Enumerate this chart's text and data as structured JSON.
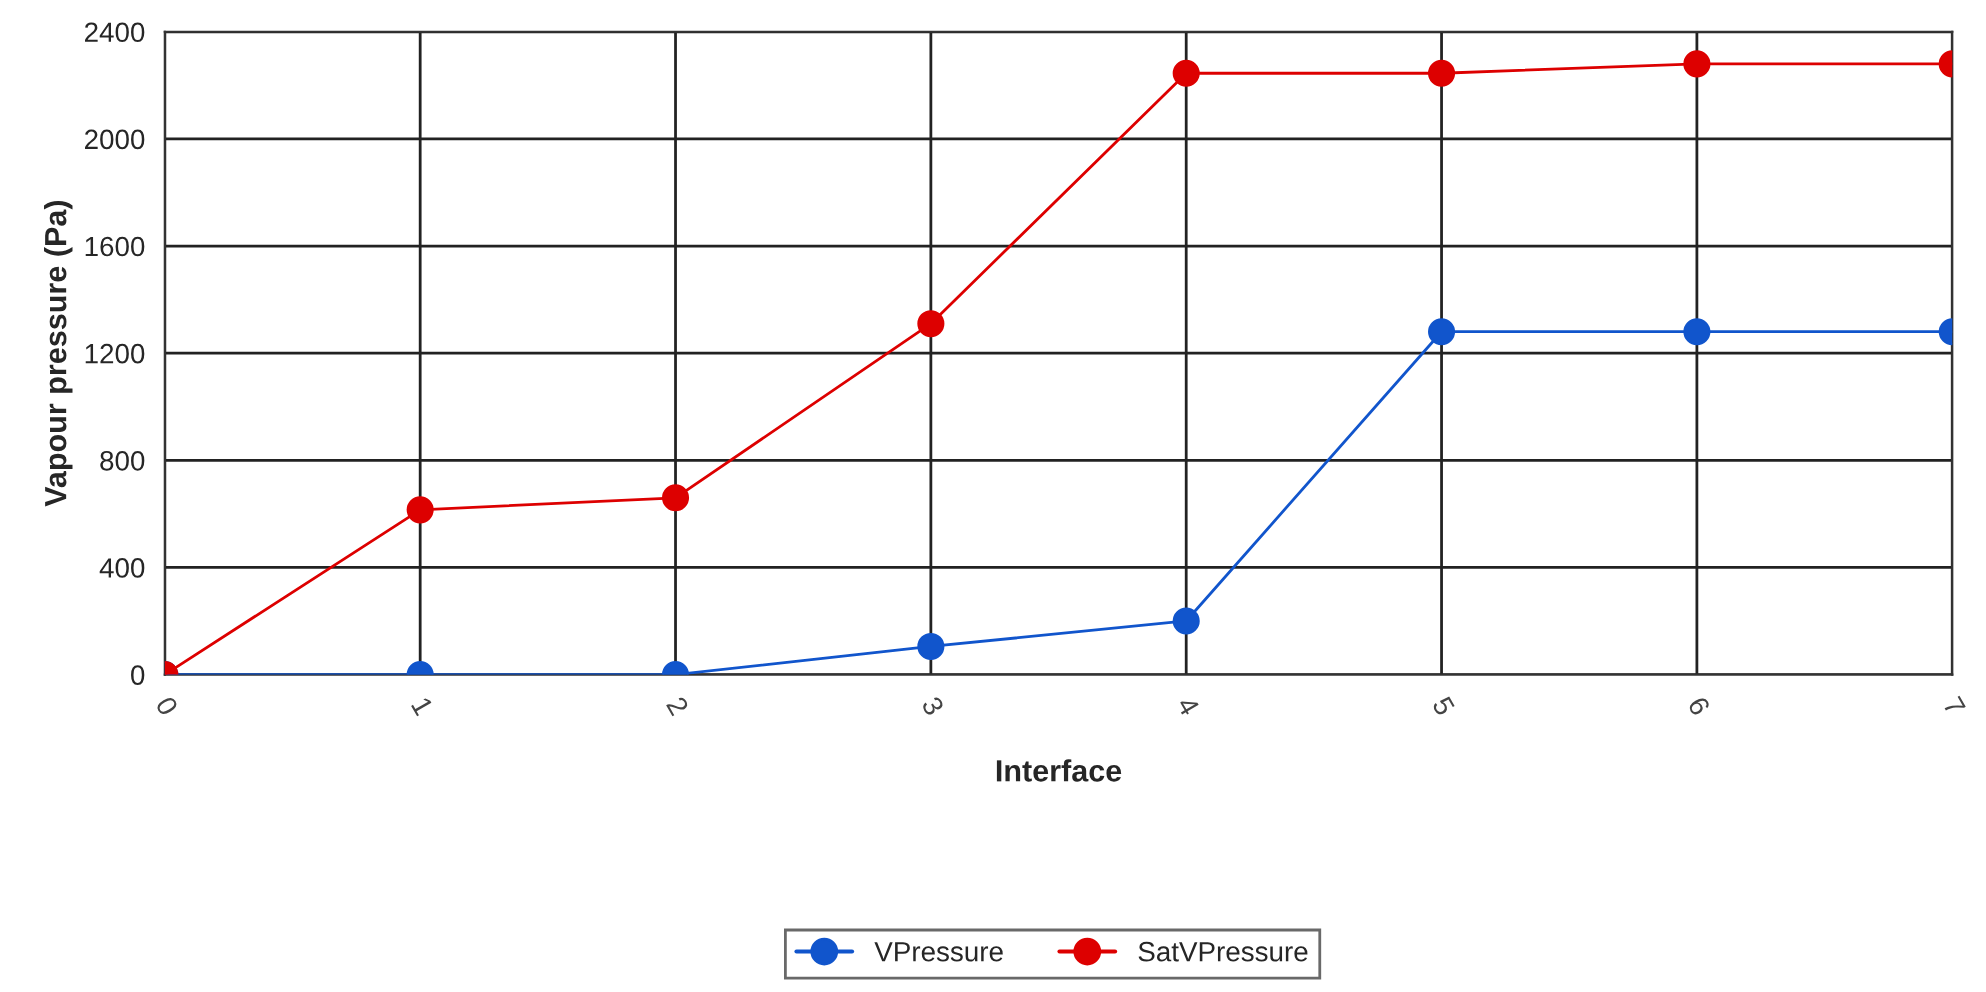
{
  "chart_data": {
    "type": "line",
    "xlabel": "Interface",
    "ylabel": "Vapour pressure (Pa)",
    "categories": [
      "0",
      "1",
      "2",
      "3",
      "4",
      "5",
      "6",
      "7"
    ],
    "series": [
      {
        "name": "VPressure",
        "color": "#1155cc",
        "values": [
          0,
          0,
          0,
          105,
          200,
          1280,
          1280,
          1280
        ]
      },
      {
        "name": "SatVPressure",
        "color": "#dd0000",
        "values": [
          0,
          615,
          660,
          1310,
          2245,
          2245,
          2280,
          2280
        ]
      }
    ],
    "ylim": [
      0,
      2400
    ],
    "yticks": [
      0,
      400,
      800,
      1200,
      1600,
      2000,
      2400
    ],
    "grid": true,
    "legend": "bottom",
    "marker": "circle",
    "line_style": "solid"
  }
}
